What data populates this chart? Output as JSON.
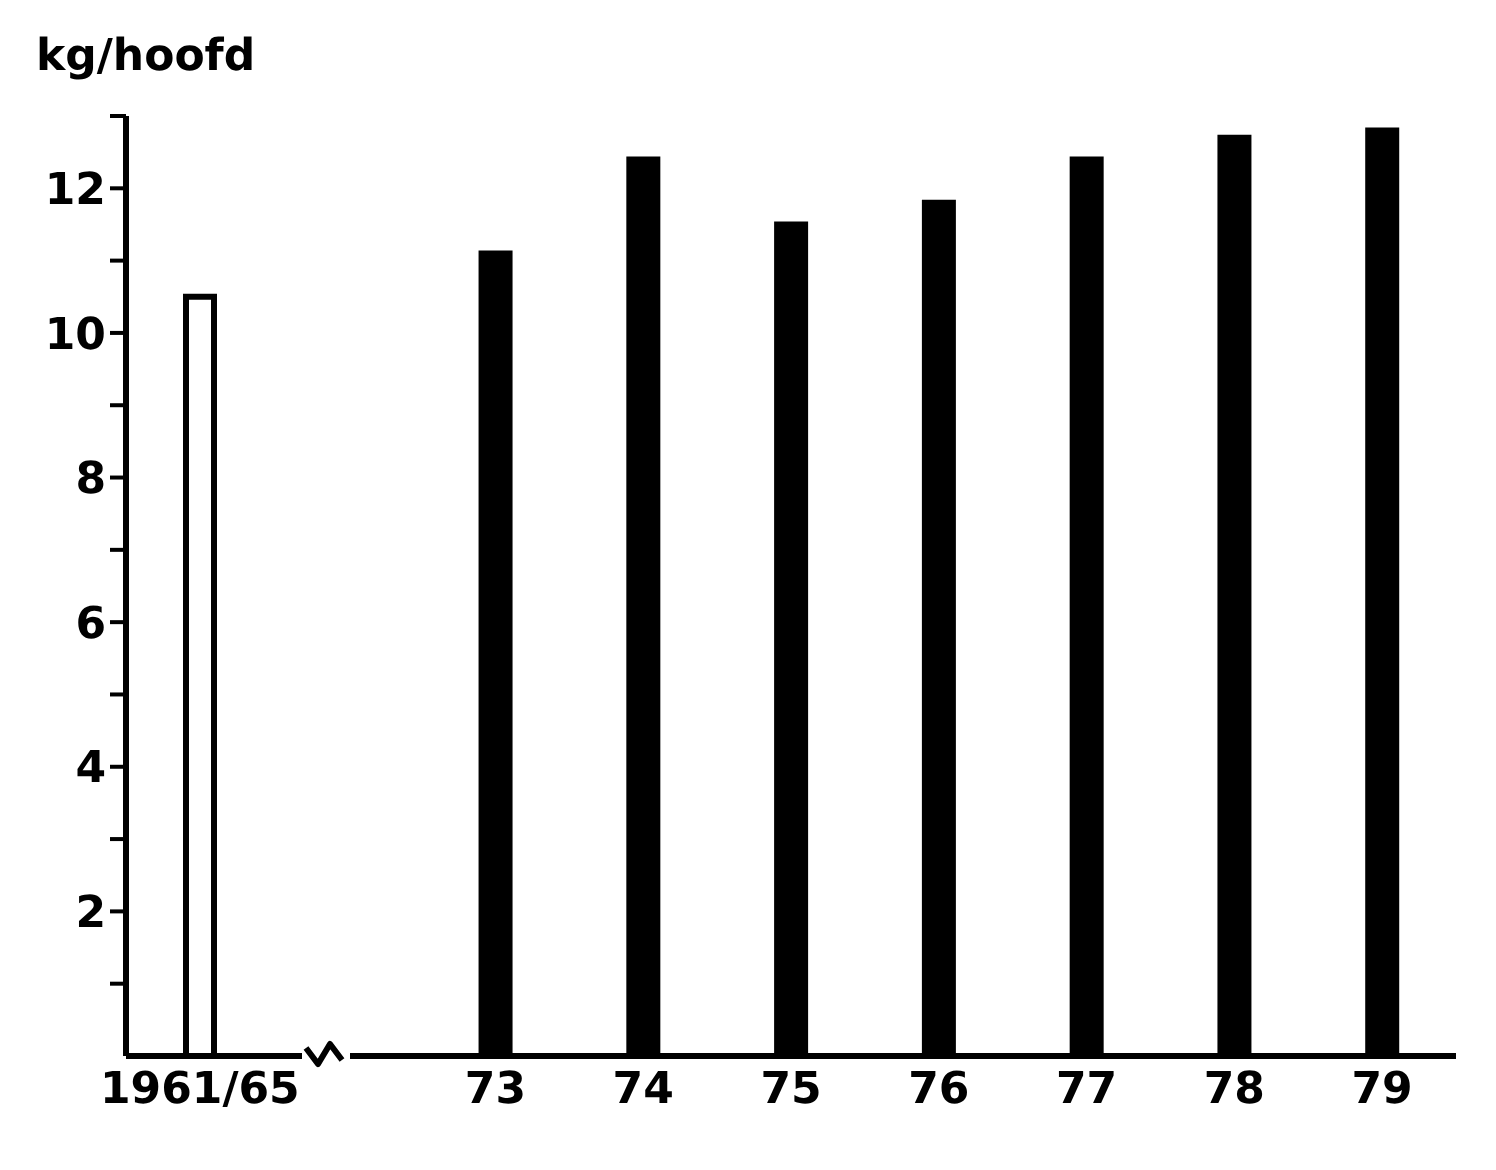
{
  "chart_data": {
    "type": "bar",
    "ylabel": "kg/hoofd",
    "categories": [
      "1961/65",
      null,
      "73",
      "74",
      "75",
      "76",
      "77",
      "78",
      "79"
    ],
    "values": [
      10.5,
      null,
      11.1,
      12.4,
      11.5,
      11.8,
      12.4,
      12.7,
      12.8
    ],
    "colors": [
      "#ffffff",
      "#000000",
      "#000000",
      "#000000",
      "#000000",
      "#000000",
      "#000000",
      "#000000",
      "#000000"
    ],
    "ylim": [
      0,
      13
    ],
    "yticks": [
      {
        "value": 1,
        "label": null
      },
      2,
      {
        "value": 3,
        "label": null
      },
      4,
      {
        "value": 5,
        "label": null
      },
      6,
      {
        "value": 7,
        "label": null
      },
      8,
      {
        "value": 9,
        "label": null
      },
      10,
      {
        "value": 11,
        "label": null
      },
      12,
      {
        "value": 13,
        "label": null
      }
    ],
    "grid": false,
    "legend": false
  }
}
